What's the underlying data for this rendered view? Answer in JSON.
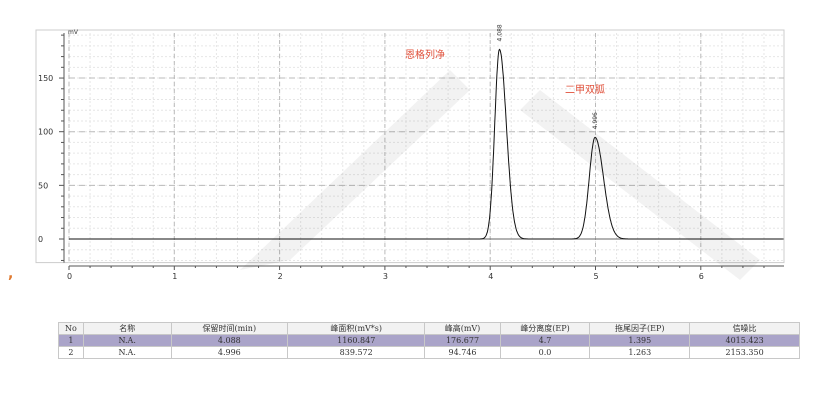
{
  "chart_data": {
    "type": "line",
    "ylabel": "mV",
    "xlim": [
      0,
      6.8
    ],
    "ylim": [
      -22,
      192
    ],
    "x_ticks": [
      "0",
      "1",
      "2",
      "3",
      "4",
      "5",
      "6"
    ],
    "y_ticks": [
      "0",
      "50",
      "100",
      "150"
    ],
    "grid": true,
    "peaks": [
      {
        "rt": 4.088,
        "height": 176.677,
        "label": "4.088",
        "name": "恩格列净"
      },
      {
        "rt": 4.996,
        "height": 94.746,
        "label": "4.996",
        "name": "二甲双胍"
      }
    ],
    "annotation_color": "#e0503a"
  },
  "table": {
    "headers": [
      "No",
      "名称",
      "保留时间(min)",
      "峰面积(mV*s)",
      "峰高(mV)",
      "峰分离度(EP)",
      "拖尾因子(EP)",
      "信噪比"
    ],
    "rows": [
      [
        "1",
        "N.A.",
        "4.088",
        "1160.847",
        "176.677",
        "4.7",
        "1.395",
        "4015.423"
      ],
      [
        "2",
        "N.A.",
        "4.996",
        "839.572",
        "94.746",
        "0.0",
        "1.263",
        "2153.350"
      ]
    ],
    "selected_row_color": "#aaa4c9"
  },
  "stray_mark": ","
}
